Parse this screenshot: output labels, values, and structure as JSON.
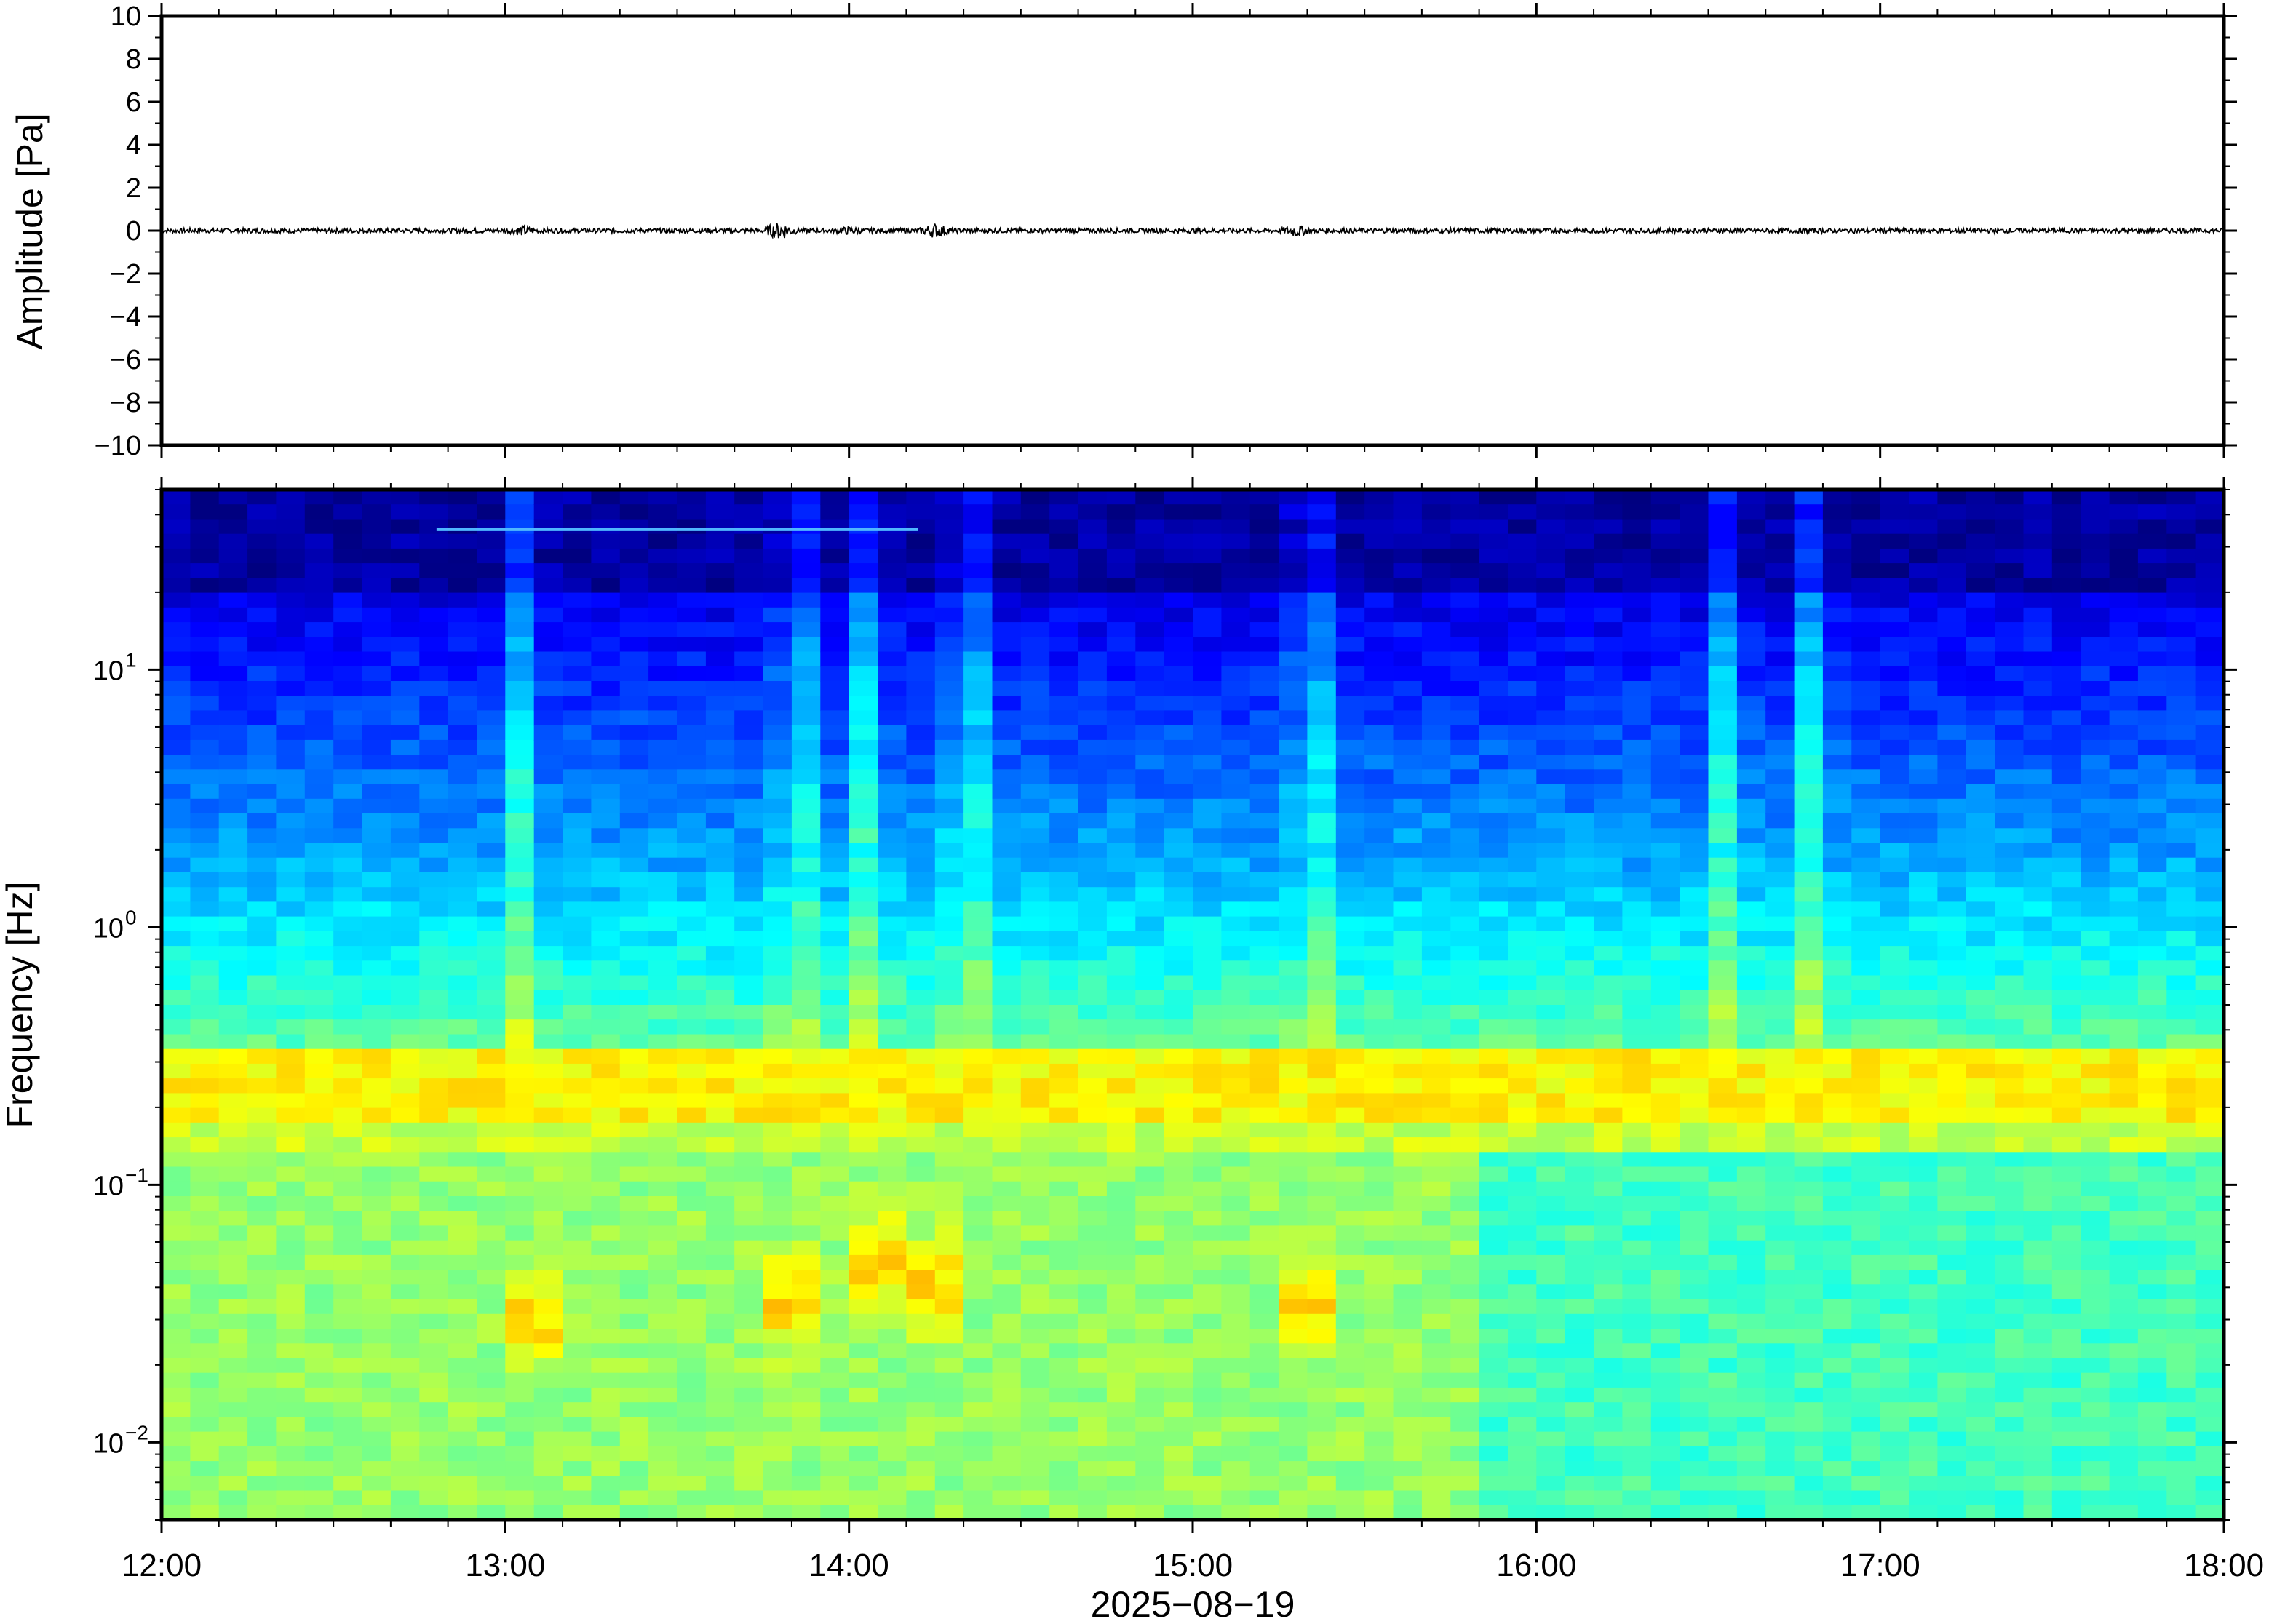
{
  "chart_data": [
    {
      "type": "line",
      "title": "",
      "ylabel": "Amplitude [Pa]",
      "ylim": [
        -10,
        10
      ],
      "yticks": [
        10,
        8,
        6,
        4,
        2,
        0,
        -2,
        -4,
        -6,
        -8,
        -10
      ],
      "ytick_labels": [
        "10",
        "8",
        "6",
        "4",
        "2",
        "0",
        "−2",
        "−4",
        "−6",
        "−8",
        "−10"
      ],
      "xlim": [
        "12:00",
        "18:00"
      ],
      "series": [
        {
          "color": "#000000",
          "x_hours": [
            12.0,
            13.05,
            13.8,
            14.0,
            14.25,
            15.3,
            18.0
          ],
          "y": [
            0.0,
            0.2,
            0.4,
            0.15,
            0.3,
            0.25,
            0.0
          ],
          "baseline": 0
        }
      ]
    },
    {
      "type": "heatmap",
      "ylabel": "Frequency [Hz]",
      "yscale": "log",
      "ylim": [
        0.005,
        50
      ],
      "yticks": [
        0.01,
        0.1,
        1,
        10
      ],
      "ytick_labels": [
        {
          "base": "10",
          "exp": "−2"
        },
        {
          "base": "10",
          "exp": "−1"
        },
        {
          "base": "10",
          "exp": "0"
        },
        {
          "base": "10",
          "exp": "1"
        }
      ],
      "xlabel": "2025−08−19",
      "xticks": [
        "12:00",
        "13:00",
        "14:00",
        "15:00",
        "16:00",
        "17:00",
        "18:00"
      ],
      "colormap": "jet",
      "hot_spots": [
        {
          "time": "13:05",
          "freq_hz": 0.03
        },
        {
          "time": "13:50",
          "freq_hz": 0.035
        },
        {
          "time": "14:05",
          "freq_hz": 0.05
        },
        {
          "time": "14:15",
          "freq_hz": 0.04
        },
        {
          "time": "15:20",
          "freq_hz": 0.035
        }
      ],
      "spectral_line": {
        "start": "12:48",
        "end": "14:12",
        "freq_hz": 35
      }
    }
  ],
  "colors": {
    "frame": "#000000",
    "trace": "#000000"
  }
}
